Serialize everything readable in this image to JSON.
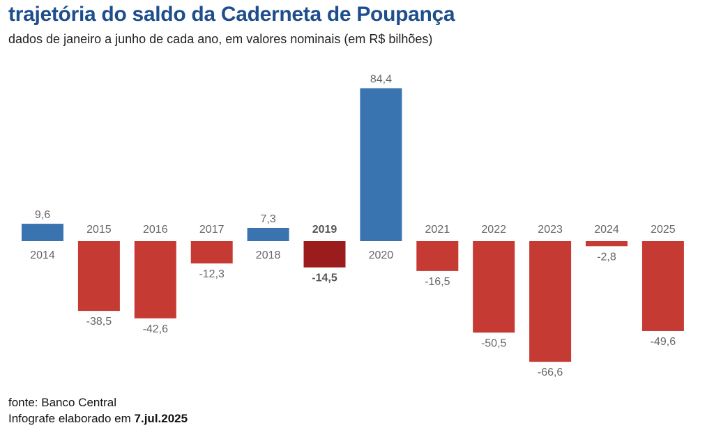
{
  "header": {
    "title": "trajetória do saldo da Caderneta de Poupança",
    "subtitle": "dados de janeiro a junho de cada ano, em valores nominais (em R$ bilhões)"
  },
  "footer": {
    "source": "fonte: Banco Central",
    "credit_prefix": "Infografe elaborado em",
    "credit_date": "7.jul.2025"
  },
  "colors": {
    "positive": "#3a74b0",
    "negative": "#c63a34",
    "highlight_negative": "#9b1c1c",
    "title": "#1f4e8c"
  },
  "chart_data": {
    "type": "bar",
    "title": "trajetória do saldo da Caderneta de Poupança",
    "subtitle": "dados de janeiro a junho de cada ano, em valores nominais (em R$ bilhões)",
    "categories": [
      "2014",
      "2015",
      "2016",
      "2017",
      "2018",
      "2019",
      "2020",
      "2021",
      "2022",
      "2023",
      "2024",
      "2025"
    ],
    "values": [
      9.6,
      -38.5,
      -42.6,
      -12.3,
      7.3,
      -14.5,
      84.4,
      -16.5,
      -50.5,
      -66.6,
      -2.8,
      -49.6
    ],
    "value_labels": [
      "9,6",
      "-38,5",
      "-42,6",
      "-12,3",
      "7,3",
      "-14,5",
      "84,4",
      "-16,5",
      "-50,5",
      "-66,6",
      "-2,8",
      "-49,6"
    ],
    "highlight": "2019",
    "ylim": [
      -66.6,
      84.4
    ],
    "grid": false,
    "legend": "none"
  }
}
